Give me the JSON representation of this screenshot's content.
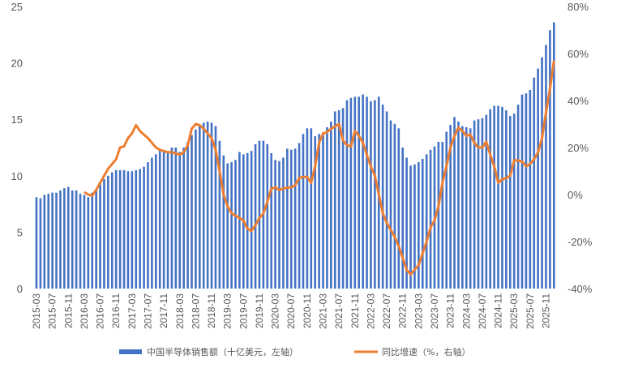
{
  "chart_data": {
    "type": "bar+line",
    "title": "",
    "x_start": "2015-03",
    "x_tick_labels": [
      "2015-03",
      "2015-07",
      "2015-11",
      "2016-03",
      "2016-07",
      "2016-11",
      "2017-03",
      "2017-07",
      "2017-11",
      "2018-03",
      "2018-07",
      "2018-11",
      "2019-03",
      "2019-07",
      "2019-11",
      "2020-03",
      "2020-07",
      "2020-11",
      "2021-03",
      "2021-07",
      "2021-11",
      "2022-03",
      "2022-07",
      "2022-11",
      "2023-03",
      "2023-07",
      "2023-11",
      "2024-03",
      "2024-07",
      "2024-11",
      "2025-03",
      "2025-07",
      "2025-11"
    ],
    "left_axis": {
      "ylim": [
        0,
        25
      ],
      "ticks": [
        0,
        5,
        10,
        15,
        20,
        25
      ]
    },
    "right_axis": {
      "ylim": [
        -40,
        80
      ],
      "ticks": [
        "-40%",
        "-20%",
        "0%",
        "20%",
        "40%",
        "60%",
        "80%"
      ]
    },
    "grid": false,
    "legend_position": "bottom",
    "series": [
      {
        "name": "中国半导体销售额（十亿美元，左轴）",
        "type": "bar",
        "axis": "left",
        "color": "#4472C4",
        "start": "2015-03",
        "values": [
          8.1,
          8.0,
          8.3,
          8.4,
          8.5,
          8.5,
          8.7,
          8.9,
          9.0,
          8.7,
          8.7,
          8.4,
          8.3,
          8.1,
          8.5,
          8.8,
          9.3,
          9.7,
          10.0,
          10.3,
          10.5,
          10.5,
          10.5,
          10.4,
          10.4,
          10.5,
          10.6,
          10.8,
          11.2,
          11.6,
          11.9,
          12.2,
          12.2,
          12.1,
          12.5,
          12.5,
          12.1,
          12.5,
          13.0,
          13.6,
          14.1,
          14.5,
          14.7,
          14.8,
          14.7,
          14.4,
          13.1,
          11.8,
          11.1,
          11.2,
          11.4,
          12.1,
          11.9,
          12.0,
          12.2,
          12.8,
          13.1,
          13.1,
          12.8,
          12.0,
          11.4,
          11.3,
          11.6,
          12.4,
          12.3,
          12.4,
          12.9,
          13.7,
          14.2,
          14.2,
          13.5,
          13.7,
          13.7,
          14.3,
          14.8,
          15.7,
          15.8,
          16.0,
          16.7,
          16.9,
          17.0,
          17.0,
          17.2,
          17.0,
          16.6,
          16.7,
          17.0,
          16.3,
          15.7,
          14.9,
          14.6,
          14.2,
          12.5,
          11.6,
          10.9,
          11.0,
          11.2,
          11.5,
          11.9,
          12.3,
          12.6,
          13.0,
          13.0,
          13.9,
          14.5,
          15.2,
          14.8,
          14.4,
          14.3,
          14.2,
          14.9,
          15.0,
          15.1,
          15.4,
          15.9,
          16.2,
          16.2,
          16.1,
          15.8,
          15.3,
          15.5,
          16.3,
          17.2,
          17.3,
          17.6,
          18.7,
          19.5,
          20.5,
          21.6,
          22.9,
          23.6
        ]
      },
      {
        "name": "同比增速（%，右轴）",
        "type": "line",
        "axis": "right",
        "color": "#ED7D31",
        "start": "2016-03",
        "values": [
          1,
          0,
          -0.5,
          2,
          5,
          8,
          11,
          13,
          15,
          20,
          20.5,
          24,
          26,
          29.5,
          27,
          25.5,
          24,
          22,
          20,
          19,
          18.5,
          18,
          18,
          17.5,
          17,
          18,
          21,
          28,
          30,
          29.5,
          28,
          26,
          24,
          19,
          10,
          0,
          -5,
          -8,
          -9,
          -10,
          -11,
          -14.5,
          -15.5,
          -13,
          -10,
          -8,
          -3,
          2.5,
          3,
          2,
          2.5,
          3,
          3,
          4,
          7,
          7.5,
          7.5,
          5,
          12,
          22,
          26,
          26.5,
          28,
          29,
          30,
          23,
          21,
          20.5,
          27,
          25,
          22,
          17,
          12,
          8,
          0,
          -8,
          -12,
          -15,
          -18,
          -22,
          -27,
          -32,
          -34,
          -32,
          -30,
          -25,
          -20,
          -14,
          -11,
          -5,
          5,
          12,
          20,
          25,
          28.5,
          27,
          25,
          25.5,
          22,
          20,
          20,
          22.5,
          17,
          12,
          5,
          6.5,
          7,
          8,
          14.5,
          14.5,
          14,
          12,
          13,
          15,
          18,
          24,
          35,
          45,
          57
        ]
      }
    ]
  },
  "legend": {
    "bar_label": "中国半导体销售额（十亿美元，左轴）",
    "line_label": "同比增速（%，右轴）"
  }
}
